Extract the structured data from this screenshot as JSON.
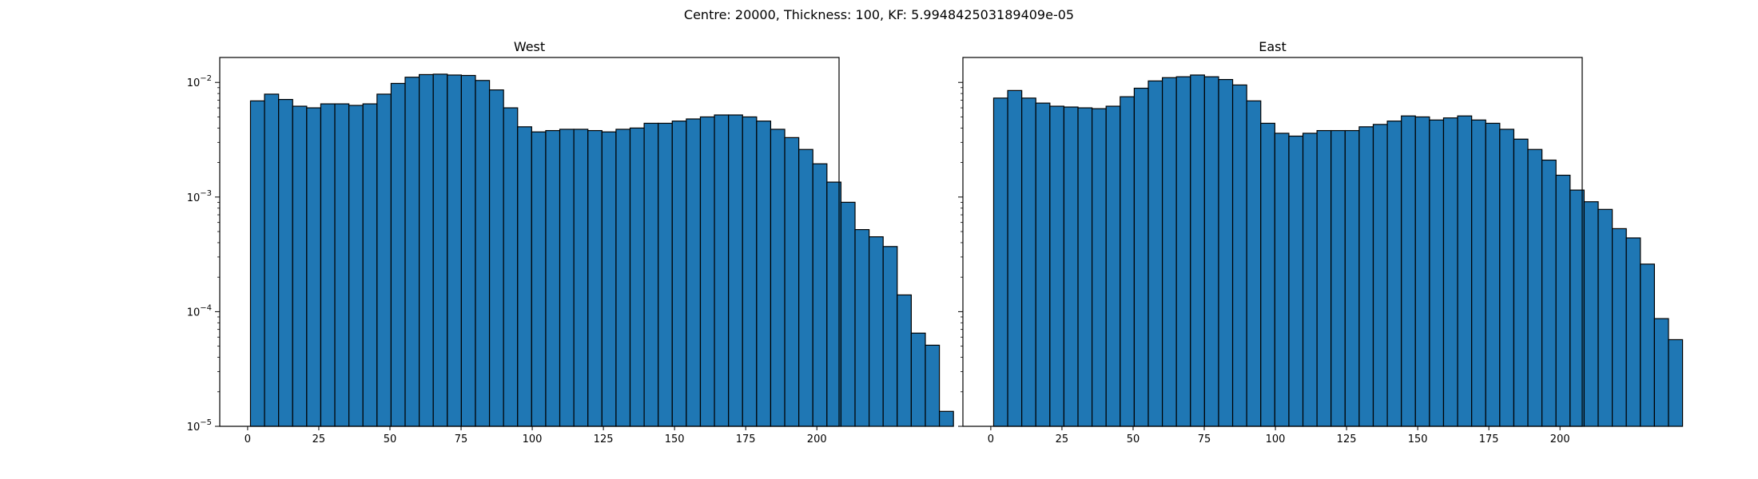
{
  "suptitle": "Centre: 20000, Thickness: 100, KF: 5.994842503189409e-05",
  "colors": {
    "bar_fill": "#1f77b4",
    "bar_edge": "#000000",
    "axes": "#000000"
  },
  "chart_data": [
    {
      "type": "bar",
      "title": "West",
      "xlabel": "",
      "ylabel": "",
      "yscale": "log",
      "xlim": [
        -9.8,
        207.8
      ],
      "ylim": [
        1e-05,
        0.0165
      ],
      "bin_edges_start": 1,
      "bin_width": 4.94,
      "x_ticks": [
        "0",
        "25",
        "50",
        "75",
        "100",
        "125",
        "150",
        "175",
        "200"
      ],
      "y_ticks": [
        {
          "base": "10",
          "exp": "−2"
        },
        {
          "base": "10",
          "exp": "−3"
        },
        {
          "base": "10",
          "exp": "−4"
        },
        {
          "base": "10",
          "exp": "−5"
        }
      ],
      "values": [
        0.0069,
        0.0079,
        0.0071,
        0.0062,
        0.006,
        0.0065,
        0.0065,
        0.0063,
        0.0065,
        0.0079,
        0.0098,
        0.0111,
        0.0117,
        0.0118,
        0.0116,
        0.0115,
        0.0104,
        0.0086,
        0.006,
        0.0041,
        0.0037,
        0.0038,
        0.0039,
        0.0039,
        0.0038,
        0.0037,
        0.0039,
        0.004,
        0.0044,
        0.0044,
        0.0046,
        0.0048,
        0.005,
        0.0052,
        0.0052,
        0.005,
        0.0046,
        0.0039,
        0.0033,
        0.0026,
        0.00195,
        0.00135,
        0.0009,
        0.00052,
        0.00045,
        0.00037,
        0.00014,
        6.5e-05,
        5.1e-05,
        1.35e-05
      ],
      "grid": false
    },
    {
      "type": "bar",
      "title": "East",
      "xlabel": "",
      "ylabel": "",
      "yscale": "log",
      "xlim": [
        -9.8,
        207.8
      ],
      "ylim": [
        1e-05,
        0.0165
      ],
      "bin_edges_start": 1,
      "bin_width": 4.94,
      "x_ticks": [
        "0",
        "25",
        "50",
        "75",
        "100",
        "125",
        "150",
        "175",
        "200"
      ],
      "y_ticks": [],
      "values": [
        0.0073,
        0.0085,
        0.0073,
        0.0066,
        0.0062,
        0.0061,
        0.006,
        0.0059,
        0.0062,
        0.0075,
        0.0089,
        0.0103,
        0.011,
        0.0112,
        0.0116,
        0.0112,
        0.0106,
        0.0095,
        0.0069,
        0.0044,
        0.0036,
        0.0034,
        0.0036,
        0.0038,
        0.0038,
        0.0038,
        0.0041,
        0.0043,
        0.0046,
        0.0051,
        0.005,
        0.0047,
        0.0049,
        0.0051,
        0.0047,
        0.0044,
        0.0039,
        0.0032,
        0.0026,
        0.0021,
        0.00155,
        0.00115,
        0.00091,
        0.00078,
        0.00053,
        0.00044,
        0.00026,
        8.7e-05,
        5.7e-05
      ],
      "grid": false
    }
  ]
}
